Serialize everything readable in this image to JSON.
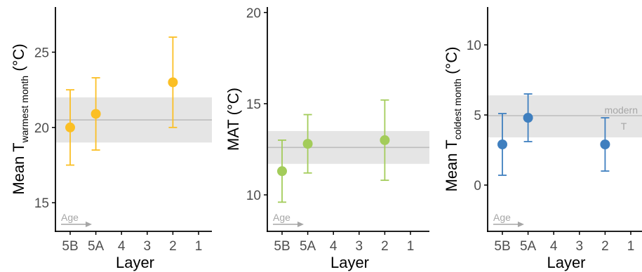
{
  "colors": {
    "band": "#e5e5e5",
    "reference_line": "#bdbdbd",
    "axis": "#000000",
    "tick_text": "#4d4d4d",
    "age": "#a6a6a6"
  },
  "chart_data": [
    {
      "type": "scatter",
      "ylabel": "Mean T",
      "ylabel_subscript": "warmest month",
      "ylabel_suffix": " (°C)",
      "xlabel": "Layer",
      "categories": [
        "5B",
        "5A",
        "4",
        "3",
        "2",
        "1"
      ],
      "ylim": [
        13.1,
        28.0
      ],
      "yticks": [
        15,
        20,
        25
      ],
      "color": "#fbbf24",
      "points": [
        {
          "x": "5B",
          "y": 20.0,
          "lower": 17.5,
          "upper": 22.5
        },
        {
          "x": "5A",
          "y": 20.9,
          "lower": 18.5,
          "upper": 23.3
        },
        {
          "x": "2",
          "y": 23.0,
          "lower": 20.0,
          "upper": 26.0
        }
      ],
      "reference": {
        "value": 20.5,
        "band": [
          19.0,
          22.0
        ]
      },
      "age_label": "Age",
      "annotation_lines": []
    },
    {
      "type": "scatter",
      "ylabel": "MAT (°C)",
      "ylabel_subscript": "",
      "ylabel_suffix": "",
      "xlabel": "Layer",
      "categories": [
        "5B",
        "5A",
        "4",
        "3",
        "2",
        "1"
      ],
      "ylim": [
        8.0,
        20.3
      ],
      "yticks": [
        10,
        15,
        20
      ],
      "color": "#a3cc5a",
      "points": [
        {
          "x": "5B",
          "y": 11.3,
          "lower": 9.6,
          "upper": 13.0
        },
        {
          "x": "5A",
          "y": 12.8,
          "lower": 11.2,
          "upper": 14.4
        },
        {
          "x": "2",
          "y": 13.0,
          "lower": 10.8,
          "upper": 15.2
        }
      ],
      "reference": {
        "value": 12.6,
        "band": [
          11.7,
          13.5
        ]
      },
      "age_label": "Age",
      "annotation_lines": []
    },
    {
      "type": "scatter",
      "ylabel": "Mean T",
      "ylabel_subscript": "coldest month",
      "ylabel_suffix": " (°C)",
      "xlabel": "Layer",
      "categories": [
        "5B",
        "5A",
        "4",
        "3",
        "2",
        "1"
      ],
      "ylim": [
        -3.3,
        12.7
      ],
      "yticks": [
        0,
        5,
        10
      ],
      "color": "#3f7fbf",
      "points": [
        {
          "x": "5B",
          "y": 2.9,
          "lower": 0.7,
          "upper": 5.1
        },
        {
          "x": "5A",
          "y": 4.8,
          "lower": 3.1,
          "upper": 6.5
        },
        {
          "x": "2",
          "y": 2.9,
          "lower": 1.0,
          "upper": 4.8
        }
      ],
      "reference": {
        "value": 4.95,
        "band": [
          3.4,
          6.4
        ]
      },
      "age_label": "Age",
      "annotation_lines": [
        "modern",
        "T"
      ]
    }
  ]
}
